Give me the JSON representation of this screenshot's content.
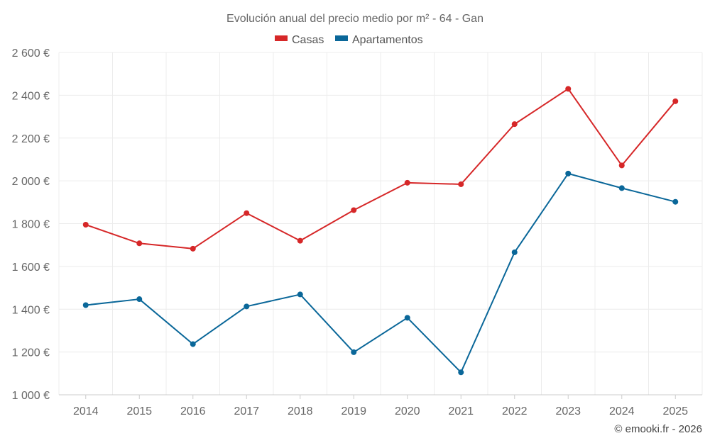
{
  "chart_data": {
    "type": "line",
    "title": "Evolución anual del precio medio por m² - 64 - Gan",
    "categories": [
      "2014",
      "2015",
      "2016",
      "2017",
      "2018",
      "2019",
      "2020",
      "2021",
      "2022",
      "2023",
      "2024",
      "2025"
    ],
    "series": [
      {
        "name": "Casas",
        "color": "#d62728",
        "values": [
          1795,
          1708,
          1683,
          1849,
          1720,
          1863,
          1991,
          1984,
          2265,
          2430,
          2072,
          2372
        ]
      },
      {
        "name": "Apartamentos",
        "color": "#0a6799",
        "values": [
          1419,
          1447,
          1237,
          1413,
          1469,
          1199,
          1360,
          1105,
          1666,
          2034,
          1966,
          1902
        ]
      }
    ],
    "ylim": [
      1000,
      2600
    ],
    "yticks": [
      1000,
      1200,
      1400,
      1600,
      1800,
      2000,
      2200,
      2400,
      2600
    ],
    "ytick_labels": [
      "1 000 €",
      "1 200 €",
      "1 400 €",
      "1 600 €",
      "1 800 €",
      "2 000 €",
      "2 200 €",
      "2 400 €",
      "2 600 €"
    ],
    "xlabel": "",
    "ylabel": "",
    "grid": true,
    "legend_position": "top-center"
  },
  "credit": "© emooki.fr - 2026"
}
